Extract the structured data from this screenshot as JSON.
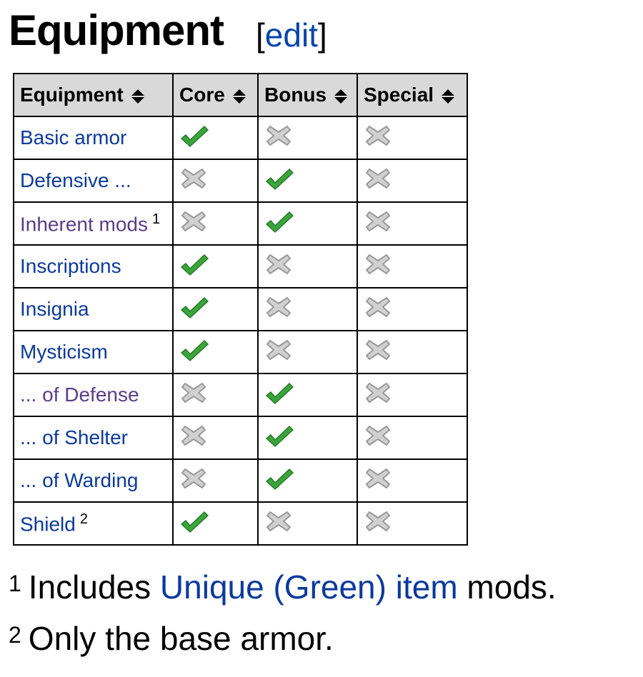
{
  "heading": {
    "title": "Equipment",
    "edit_open": "[",
    "edit_label": "edit",
    "edit_close": "]"
  },
  "table": {
    "headers": [
      "Equipment",
      "Core",
      "Bonus",
      "Special"
    ],
    "sort_icon": "sort-up-down-icon",
    "rows": [
      {
        "name": "Basic armor",
        "visited": false,
        "note": "",
        "core": true,
        "bonus": false,
        "special": false
      },
      {
        "name": "Defensive ...",
        "visited": false,
        "note": "",
        "core": false,
        "bonus": true,
        "special": false
      },
      {
        "name": "Inherent mods",
        "visited": true,
        "note": "1",
        "core": false,
        "bonus": true,
        "special": false
      },
      {
        "name": "Inscriptions",
        "visited": false,
        "note": "",
        "core": true,
        "bonus": false,
        "special": false
      },
      {
        "name": "Insignia",
        "visited": false,
        "note": "",
        "core": true,
        "bonus": false,
        "special": false
      },
      {
        "name": "Mysticism",
        "visited": false,
        "note": "",
        "core": true,
        "bonus": false,
        "special": false
      },
      {
        "name": "... of Defense",
        "visited": true,
        "note": "",
        "core": false,
        "bonus": true,
        "special": false
      },
      {
        "name": "... of Shelter",
        "visited": false,
        "note": "",
        "core": false,
        "bonus": true,
        "special": false
      },
      {
        "name": "... of Warding",
        "visited": false,
        "note": "",
        "core": false,
        "bonus": true,
        "special": false
      },
      {
        "name": "Shield",
        "visited": false,
        "note": "2",
        "core": true,
        "bonus": false,
        "special": false
      }
    ]
  },
  "footnotes": [
    {
      "mark": "1",
      "before": "Includes ",
      "link": "Unique (Green) item",
      "after": " mods."
    },
    {
      "mark": "2",
      "before": "Only the base armor.",
      "link": "",
      "after": ""
    }
  ],
  "colors": {
    "link": "#0b3a9e",
    "visited": "#5a3d8a",
    "check": "#3aa53a",
    "cross": "#d0d0d0",
    "header_bg": "#d9d9d9"
  }
}
